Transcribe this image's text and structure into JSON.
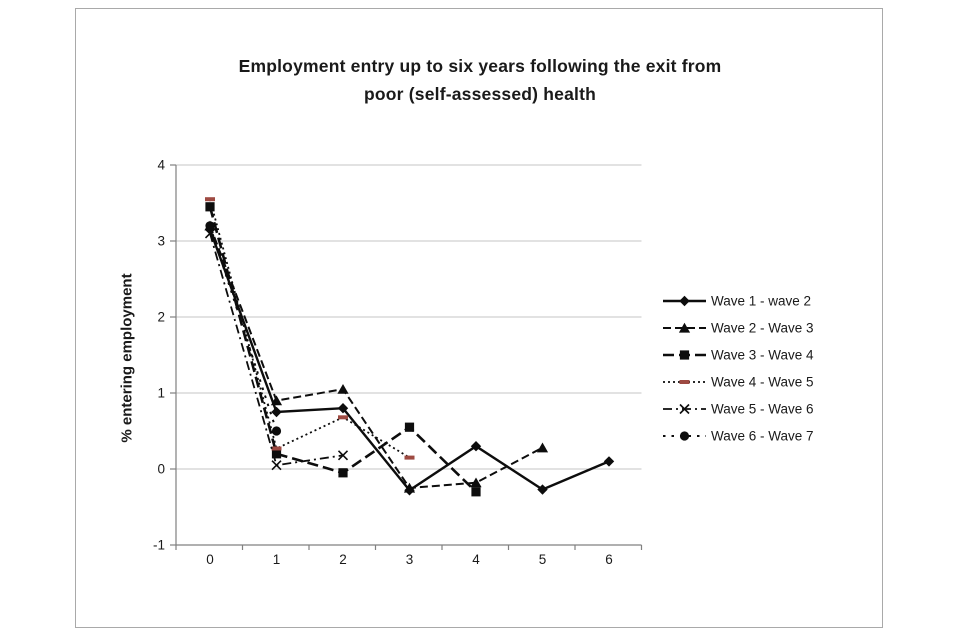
{
  "chart": {
    "title_line1": "Employment entry up to six years following the exit from",
    "title_line2": "poor (self-assessed) health",
    "y_axis_label": "% entering employment"
  },
  "chart_data": {
    "type": "line",
    "title": "Employment entry up to six years following the exit from poor (self-assessed) health",
    "xlabel": "",
    "ylabel": "% entering employment",
    "x": [
      0,
      1,
      2,
      3,
      4,
      5,
      6
    ],
    "ylim": [
      -1,
      4
    ],
    "yticks": [
      4,
      3,
      2,
      1,
      0,
      -1
    ],
    "grid": true,
    "legend_position": "right",
    "colors": {
      "series_default": "#0d0d0d",
      "wave4_marker": "#9e4a42",
      "axis": "#808080",
      "gridline": "#c6c6c6"
    },
    "series": [
      {
        "name": "Wave 1 - wave 2",
        "marker": "diamond",
        "line": "solid",
        "color": "#0d0d0d",
        "values": [
          3.15,
          0.75,
          0.8,
          -0.28,
          0.3,
          -0.27,
          0.1
        ]
      },
      {
        "name": "Wave 2 - Wave 3",
        "marker": "triangle",
        "line": "dash",
        "color": "#0d0d0d",
        "values": [
          3.2,
          0.9,
          1.05,
          -0.25,
          -0.18,
          0.28
        ]
      },
      {
        "name": "Wave 3 - Wave 4",
        "marker": "square",
        "line": "longdash",
        "color": "#0d0d0d",
        "values": [
          3.45,
          0.2,
          -0.05,
          0.55,
          -0.3
        ]
      },
      {
        "name": "Wave 4 - Wave 5",
        "marker": "dash",
        "line": "dot",
        "color": "#0d0d0d",
        "marker_color": "#9e4a42",
        "values": [
          3.55,
          0.27,
          0.68,
          0.15
        ]
      },
      {
        "name": "Wave 5 - Wave 6",
        "marker": "x",
        "line": "dashdot",
        "color": "#0d0d0d",
        "values": [
          3.1,
          0.05,
          0.18
        ]
      },
      {
        "name": "Wave 6 - Wave 7",
        "marker": "circle",
        "line": "sparsedot",
        "color": "#0d0d0d",
        "values": [
          3.2,
          0.5
        ]
      }
    ]
  }
}
